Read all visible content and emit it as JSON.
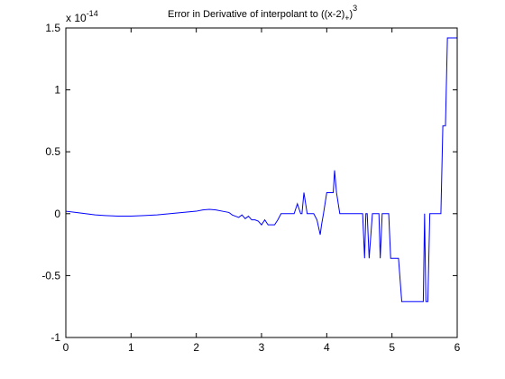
{
  "chart_data": {
    "type": "line",
    "title": "Error in Derivative of interpolant to ((x-2)",
    "title_sub": "+",
    "title_close": ")",
    "title_sup": "3",
    "y_scale_prefix": "x 10",
    "y_scale_exponent": "-14",
    "xlabel": "",
    "ylabel": "",
    "xlim": [
      0,
      6
    ],
    "ylim": [
      -1,
      1.5
    ],
    "grid": false,
    "line_color": "#0000ff",
    "xticks": [
      0,
      1,
      2,
      3,
      4,
      5,
      6
    ],
    "xtick_labels": [
      "0",
      "1",
      "2",
      "3",
      "4",
      "5",
      "6"
    ],
    "yticks": [
      -1,
      -0.5,
      0,
      0.5,
      1,
      1.5
    ],
    "ytick_labels": [
      "-1",
      "-0.5",
      "0",
      "0.5",
      "1",
      "1.5"
    ],
    "series": [
      {
        "x": [
          0.0,
          0.15,
          0.3,
          0.45,
          0.6,
          0.8,
          1.0,
          1.2,
          1.4,
          1.6,
          1.8,
          2.0,
          2.1,
          2.2,
          2.3,
          2.4,
          2.5,
          2.55,
          2.6,
          2.65,
          2.7,
          2.75,
          2.8,
          2.85,
          2.9,
          2.95,
          3.0,
          3.05,
          3.1,
          3.15,
          3.2,
          3.25,
          3.3,
          3.35,
          3.4,
          3.45,
          3.5,
          3.55,
          3.6,
          3.62,
          3.65,
          3.7,
          3.75,
          3.8,
          3.85,
          3.9,
          3.92,
          3.95,
          4.0,
          4.05,
          4.1,
          4.12,
          4.15,
          4.2,
          4.25,
          4.3,
          4.35,
          4.4,
          4.45,
          4.5,
          4.55,
          4.58,
          4.6,
          4.62,
          4.65,
          4.7,
          4.72,
          4.75,
          4.8,
          4.82,
          4.85,
          4.9,
          4.95,
          4.98,
          5.0,
          5.05,
          5.1,
          5.15,
          5.2,
          5.25,
          5.3,
          5.35,
          5.4,
          5.45,
          5.48,
          5.5,
          5.52,
          5.55,
          5.58,
          5.6,
          5.65,
          5.7,
          5.75,
          5.78,
          5.82,
          5.85,
          5.88,
          5.9,
          5.95,
          6.0
        ],
        "y": [
          0.02,
          0.01,
          0.0,
          -0.01,
          -0.015,
          -0.02,
          -0.02,
          -0.015,
          -0.01,
          0.0,
          0.01,
          0.02,
          0.03,
          0.035,
          0.03,
          0.02,
          0.01,
          -0.01,
          -0.02,
          -0.03,
          -0.01,
          -0.04,
          -0.02,
          -0.05,
          -0.05,
          -0.06,
          -0.09,
          -0.05,
          -0.09,
          -0.09,
          -0.09,
          -0.05,
          0.0,
          0.0,
          0.0,
          0.0,
          0.0,
          0.08,
          0.0,
          0.0,
          0.17,
          0.0,
          0.0,
          0.0,
          -0.05,
          -0.17,
          -0.09,
          0.0,
          0.17,
          0.17,
          0.17,
          0.35,
          0.17,
          0.0,
          0.0,
          0.0,
          0.0,
          0.0,
          0.0,
          0.0,
          0.0,
          -0.36,
          0.0,
          0.0,
          -0.36,
          0.0,
          0.0,
          0.0,
          0.0,
          -0.36,
          0.0,
          0.0,
          0.0,
          -0.36,
          -0.36,
          -0.36,
          -0.36,
          -0.71,
          -0.71,
          -0.71,
          -0.71,
          -0.71,
          -0.71,
          -0.71,
          -0.71,
          0.0,
          -0.71,
          -0.71,
          0.0,
          0.0,
          0.0,
          0.0,
          0.0,
          0.71,
          0.71,
          1.42,
          1.42,
          1.42,
          1.42,
          1.42
        ]
      }
    ]
  }
}
